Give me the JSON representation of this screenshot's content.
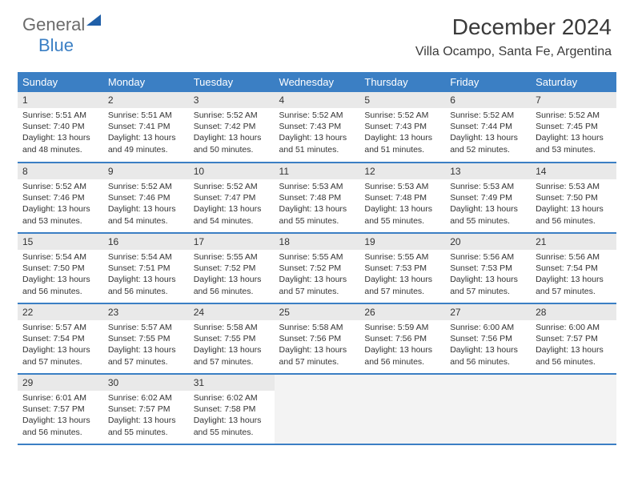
{
  "logo": {
    "part1": "General",
    "part2": "Blue"
  },
  "title": "December 2024",
  "location": "Villa Ocampo, Santa Fe, Argentina",
  "colors": {
    "header_bg": "#3b7fc4",
    "header_text": "#ffffff",
    "daynum_bg": "#e9e9e9",
    "border": "#3b7fc4",
    "logo_gray": "#6b6b6b",
    "logo_blue": "#3b7fc4"
  },
  "weekdays": [
    "Sunday",
    "Monday",
    "Tuesday",
    "Wednesday",
    "Thursday",
    "Friday",
    "Saturday"
  ],
  "weeks": [
    [
      {
        "n": "1",
        "sr": "5:51 AM",
        "ss": "7:40 PM",
        "dl": "13 hours and 48 minutes."
      },
      {
        "n": "2",
        "sr": "5:51 AM",
        "ss": "7:41 PM",
        "dl": "13 hours and 49 minutes."
      },
      {
        "n": "3",
        "sr": "5:52 AM",
        "ss": "7:42 PM",
        "dl": "13 hours and 50 minutes."
      },
      {
        "n": "4",
        "sr": "5:52 AM",
        "ss": "7:43 PM",
        "dl": "13 hours and 51 minutes."
      },
      {
        "n": "5",
        "sr": "5:52 AM",
        "ss": "7:43 PM",
        "dl": "13 hours and 51 minutes."
      },
      {
        "n": "6",
        "sr": "5:52 AM",
        "ss": "7:44 PM",
        "dl": "13 hours and 52 minutes."
      },
      {
        "n": "7",
        "sr": "5:52 AM",
        "ss": "7:45 PM",
        "dl": "13 hours and 53 minutes."
      }
    ],
    [
      {
        "n": "8",
        "sr": "5:52 AM",
        "ss": "7:46 PM",
        "dl": "13 hours and 53 minutes."
      },
      {
        "n": "9",
        "sr": "5:52 AM",
        "ss": "7:46 PM",
        "dl": "13 hours and 54 minutes."
      },
      {
        "n": "10",
        "sr": "5:52 AM",
        "ss": "7:47 PM",
        "dl": "13 hours and 54 minutes."
      },
      {
        "n": "11",
        "sr": "5:53 AM",
        "ss": "7:48 PM",
        "dl": "13 hours and 55 minutes."
      },
      {
        "n": "12",
        "sr": "5:53 AM",
        "ss": "7:48 PM",
        "dl": "13 hours and 55 minutes."
      },
      {
        "n": "13",
        "sr": "5:53 AM",
        "ss": "7:49 PM",
        "dl": "13 hours and 55 minutes."
      },
      {
        "n": "14",
        "sr": "5:53 AM",
        "ss": "7:50 PM",
        "dl": "13 hours and 56 minutes."
      }
    ],
    [
      {
        "n": "15",
        "sr": "5:54 AM",
        "ss": "7:50 PM",
        "dl": "13 hours and 56 minutes."
      },
      {
        "n": "16",
        "sr": "5:54 AM",
        "ss": "7:51 PM",
        "dl": "13 hours and 56 minutes."
      },
      {
        "n": "17",
        "sr": "5:55 AM",
        "ss": "7:52 PM",
        "dl": "13 hours and 56 minutes."
      },
      {
        "n": "18",
        "sr": "5:55 AM",
        "ss": "7:52 PM",
        "dl": "13 hours and 57 minutes."
      },
      {
        "n": "19",
        "sr": "5:55 AM",
        "ss": "7:53 PM",
        "dl": "13 hours and 57 minutes."
      },
      {
        "n": "20",
        "sr": "5:56 AM",
        "ss": "7:53 PM",
        "dl": "13 hours and 57 minutes."
      },
      {
        "n": "21",
        "sr": "5:56 AM",
        "ss": "7:54 PM",
        "dl": "13 hours and 57 minutes."
      }
    ],
    [
      {
        "n": "22",
        "sr": "5:57 AM",
        "ss": "7:54 PM",
        "dl": "13 hours and 57 minutes."
      },
      {
        "n": "23",
        "sr": "5:57 AM",
        "ss": "7:55 PM",
        "dl": "13 hours and 57 minutes."
      },
      {
        "n": "24",
        "sr": "5:58 AM",
        "ss": "7:55 PM",
        "dl": "13 hours and 57 minutes."
      },
      {
        "n": "25",
        "sr": "5:58 AM",
        "ss": "7:56 PM",
        "dl": "13 hours and 57 minutes."
      },
      {
        "n": "26",
        "sr": "5:59 AM",
        "ss": "7:56 PM",
        "dl": "13 hours and 56 minutes."
      },
      {
        "n": "27",
        "sr": "6:00 AM",
        "ss": "7:56 PM",
        "dl": "13 hours and 56 minutes."
      },
      {
        "n": "28",
        "sr": "6:00 AM",
        "ss": "7:57 PM",
        "dl": "13 hours and 56 minutes."
      }
    ],
    [
      {
        "n": "29",
        "sr": "6:01 AM",
        "ss": "7:57 PM",
        "dl": "13 hours and 56 minutes."
      },
      {
        "n": "30",
        "sr": "6:02 AM",
        "ss": "7:57 PM",
        "dl": "13 hours and 55 minutes."
      },
      {
        "n": "31",
        "sr": "6:02 AM",
        "ss": "7:58 PM",
        "dl": "13 hours and 55 minutes."
      },
      {
        "empty": true
      },
      {
        "empty": true
      },
      {
        "empty": true
      },
      {
        "empty": true
      }
    ]
  ],
  "labels": {
    "sunrise": "Sunrise: ",
    "sunset": "Sunset: ",
    "daylight": "Daylight: "
  }
}
